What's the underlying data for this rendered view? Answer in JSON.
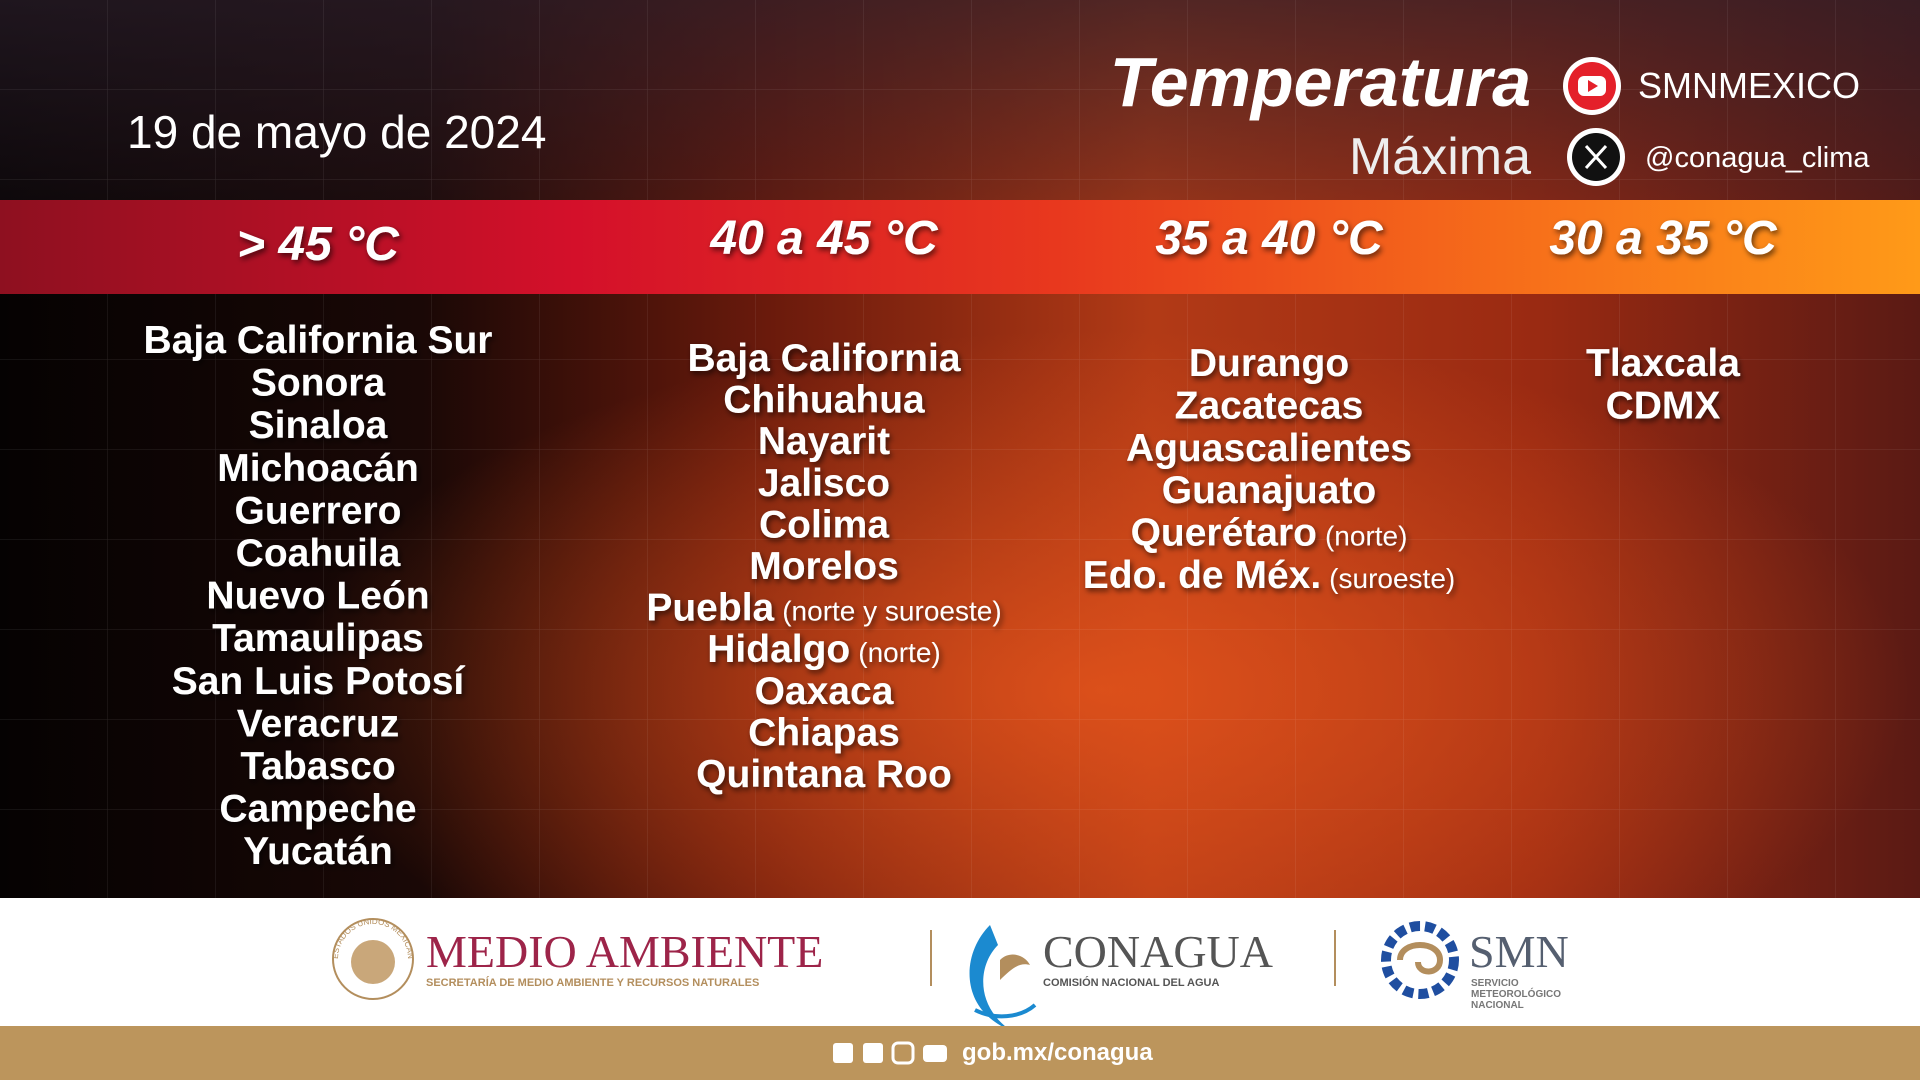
{
  "header": {
    "date": "19 de mayo de 2024",
    "title": "Temperatura",
    "subtitle": "Máxima",
    "youtube": "SMNMEXICO",
    "x_account": "@conagua_clima"
  },
  "columns": [
    {
      "heading": "> 45 °C",
      "items": [
        {
          "name": "Baja California Sur"
        },
        {
          "name": "Sonora"
        },
        {
          "name": "Sinaloa"
        },
        {
          "name": "Michoacán"
        },
        {
          "name": "Guerrero"
        },
        {
          "name": "Coahuila"
        },
        {
          "name": "Nuevo León"
        },
        {
          "name": "Tamaulipas"
        },
        {
          "name": "San Luis Potosí"
        },
        {
          "name": "Veracruz"
        },
        {
          "name": "Tabasco"
        },
        {
          "name": "Campeche"
        },
        {
          "name": "Yucatán"
        }
      ]
    },
    {
      "heading": "40 a 45 °C",
      "items": [
        {
          "name": "Baja California"
        },
        {
          "name": "Chihuahua"
        },
        {
          "name": "Nayarit"
        },
        {
          "name": "Jalisco"
        },
        {
          "name": "Colima"
        },
        {
          "name": "Morelos"
        },
        {
          "name": "Puebla",
          "note": "(norte y suroeste)"
        },
        {
          "name": "Hidalgo",
          "note": "(norte)"
        },
        {
          "name": "Oaxaca"
        },
        {
          "name": "Chiapas"
        },
        {
          "name": "Quintana Roo"
        }
      ]
    },
    {
      "heading": "35 a 40 °C",
      "items": [
        {
          "name": "Durango"
        },
        {
          "name": "Zacatecas"
        },
        {
          "name": "Aguascalientes"
        },
        {
          "name": "Guanajuato"
        },
        {
          "name": "Querétaro",
          "note": "(norte)"
        },
        {
          "name": "Edo. de Méx.",
          "note": "(suroeste)"
        }
      ]
    },
    {
      "heading": "30 a 35 °C",
      "items": [
        {
          "name": "Tlaxcala"
        },
        {
          "name": "CDMX"
        }
      ]
    }
  ],
  "footer": {
    "seal": "ESTADOS UNIDOS MEXICANOS",
    "medio_ambiente": "MEDIO AMBIENTE",
    "medio_ambiente_sub": "SECRETARÍA DE MEDIO AMBIENTE Y RECURSOS NATURALES",
    "conagua": "CONAGUA",
    "conagua_sub": "COMISIÓN NACIONAL DEL AGUA",
    "smn": "SMN",
    "smn_sub": [
      "SERVICIO",
      "METEOROLÓGICO",
      "NACIONAL"
    ],
    "url": "gob.mx/conagua"
  }
}
